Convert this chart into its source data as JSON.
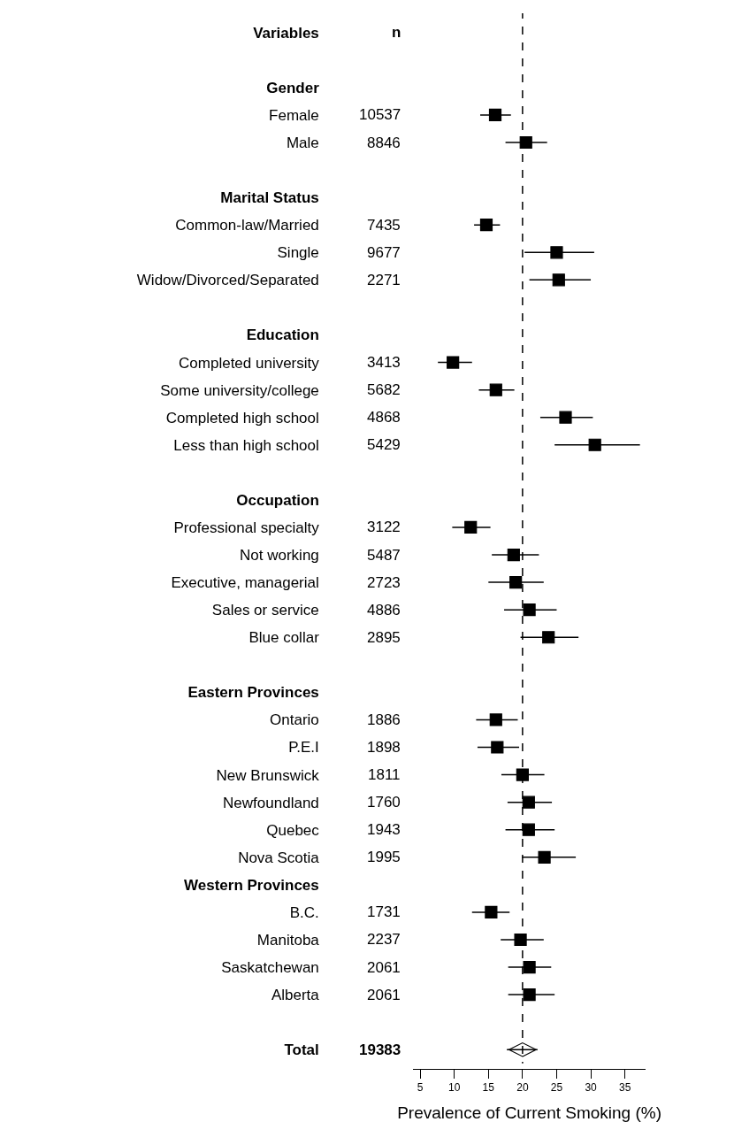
{
  "chart_data": {
    "type": "scatter",
    "orientation": "horizontal",
    "xlabel": "Prevalence of Current Smoking (%)",
    "categories": [
      "Variables",
      null,
      "Gender",
      "Female",
      "Male",
      null,
      "Marital Status",
      "Common-law/Married",
      "Single",
      "Widow/Divorced/Separated",
      null,
      "Education",
      "Completed university",
      "Some university/college",
      "Completed high school",
      "Less than high school",
      null,
      "Occupation",
      "Professional specialty",
      "Not working",
      "Executive, managerial",
      "Sales or service",
      "Blue collar",
      null,
      "Eastern Provinces",
      "Ontario",
      "P.E.I",
      "New Brunswick",
      "Newfoundland",
      "Quebec",
      "Nova Scotia",
      "Western Provinces",
      "B.C.",
      "Manitoba",
      "Saskatchewan",
      "Alberta",
      null,
      "Total"
    ],
    "series": [
      {
        "marker": "square",
        "color": "#000000",
        "values": [
          null,
          null,
          null,
          16.0,
          20.5,
          null,
          null,
          14.7,
          25.0,
          25.3,
          null,
          null,
          9.8,
          16.1,
          26.3,
          30.6,
          null,
          null,
          12.4,
          18.7,
          19.0,
          21.0,
          23.8,
          null,
          null,
          16.1,
          16.3,
          20.0,
          20.9,
          20.9,
          23.2,
          null,
          15.4,
          19.7,
          21.0,
          21.0,
          null,
          null
        ],
        "errors": [
          null,
          null,
          null,
          [
            13.8,
            18.3
          ],
          [
            17.5,
            23.6
          ],
          null,
          null,
          [
            12.9,
            16.7
          ],
          [
            20.3,
            30.5
          ],
          [
            21.0,
            30.0
          ],
          null,
          null,
          [
            7.6,
            12.6
          ],
          [
            13.6,
            18.8
          ],
          [
            22.6,
            30.3
          ],
          [
            24.7,
            37.2
          ],
          null,
          null,
          [
            9.7,
            15.3
          ],
          [
            15.5,
            22.4
          ],
          [
            15.0,
            23.1
          ],
          [
            17.3,
            25.0
          ],
          [
            19.7,
            28.2
          ],
          null,
          null,
          [
            13.2,
            19.3
          ],
          [
            13.4,
            19.5
          ],
          [
            16.9,
            23.2
          ],
          [
            17.8,
            24.3
          ],
          [
            17.5,
            24.7
          ],
          [
            19.9,
            27.8
          ],
          null,
          [
            12.6,
            18.1
          ],
          [
            16.8,
            23.1
          ],
          [
            17.9,
            24.2
          ],
          [
            17.9,
            24.7
          ],
          null,
          null
        ]
      },
      {
        "marker": "diamond",
        "color": "#000000",
        "values": [
          null,
          null,
          null,
          null,
          null,
          null,
          null,
          null,
          null,
          null,
          null,
          null,
          null,
          null,
          null,
          null,
          null,
          null,
          null,
          null,
          null,
          null,
          null,
          null,
          null,
          null,
          null,
          null,
          null,
          null,
          null,
          null,
          null,
          null,
          null,
          null,
          null,
          20.0
        ],
        "errors": [
          null,
          null,
          null,
          null,
          null,
          null,
          null,
          null,
          null,
          null,
          null,
          null,
          null,
          null,
          null,
          null,
          null,
          null,
          null,
          null,
          null,
          null,
          null,
          null,
          null,
          null,
          null,
          null,
          null,
          null,
          null,
          null,
          null,
          null,
          null,
          null,
          null,
          [
            17.7,
            22.2
          ]
        ]
      }
    ],
    "annotations": [
      "n",
      "10537",
      "8846",
      "7435",
      "9677",
      "2271",
      "3413",
      "5682",
      "4868",
      "5429",
      "3122",
      "5487",
      "2723",
      "4886",
      "2895",
      "1886",
      "1898",
      "1811",
      "1760",
      "1943",
      "1995",
      "1731",
      "2237",
      "2061",
      "2061",
      "19383"
    ],
    "ref_lines": [
      {
        "axis": "x",
        "value": 20,
        "line_style": "dashed",
        "color": "#000000"
      }
    ],
    "xlim": [
      4,
      38
    ],
    "xticks": [
      5,
      10,
      15,
      20,
      25,
      30,
      35
    ],
    "tick_labels": "x"
  }
}
